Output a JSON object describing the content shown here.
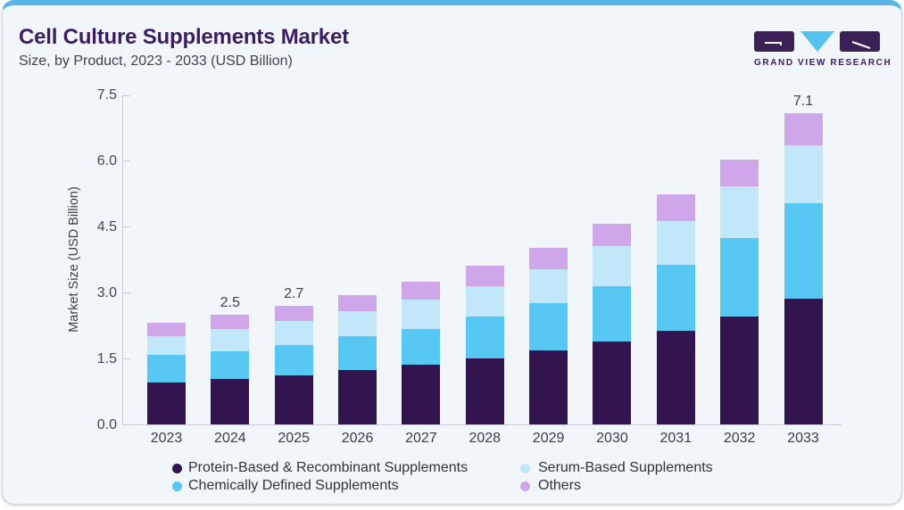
{
  "header": {
    "title": "Cell Culture Supplements Market",
    "subtitle": "Size, by Product, 2023 - 2033 (USD Billion)",
    "logo_text": "GRAND VIEW RESEARCH",
    "logo_icons": [
      "g-square-icon",
      "v-triangle-icon",
      "r-square-icon"
    ]
  },
  "colors": {
    "accent_bar_top": "#58b5e8",
    "card_background": "#f1f6fa",
    "title_purple": "#3a1d64",
    "logo_triangle_blue": "#56c0ee",
    "logo_square_purple": "#3b2158",
    "axis_gray": "#c6ccd2"
  },
  "chart_data": {
    "type": "bar",
    "stacked": true,
    "title": "Cell Culture Supplements Market",
    "subtitle": "Size, by Product, 2023 - 2033 (USD Billion)",
    "xlabel": "",
    "ylabel": "Market Size (USD Billion)",
    "ylim": [
      0,
      7.5
    ],
    "yticks": [
      0.0,
      1.5,
      3.0,
      4.5,
      6.0,
      7.5
    ],
    "grid": false,
    "legend_position": "bottom",
    "categories": [
      "2023",
      "2024",
      "2025",
      "2026",
      "2027",
      "2028",
      "2029",
      "2030",
      "2031",
      "2032",
      "2033"
    ],
    "series": [
      {
        "name": "Protein-Based & Recombinant Supplements",
        "color": "#32154e",
        "values": [
          0.97,
          1.04,
          1.13,
          1.25,
          1.36,
          1.52,
          1.69,
          1.9,
          2.15,
          2.47,
          2.87
        ]
      },
      {
        "name": "Chemically Defined Supplements",
        "color": "#57c7f3",
        "values": [
          0.62,
          0.64,
          0.69,
          0.76,
          0.83,
          0.95,
          1.08,
          1.26,
          1.49,
          1.79,
          2.17
        ]
      },
      {
        "name": "Serum-Based Supplements",
        "color": "#c3e7fa",
        "values": [
          0.43,
          0.51,
          0.55,
          0.57,
          0.67,
          0.68,
          0.77,
          0.9,
          1.0,
          1.16,
          1.32
        ]
      },
      {
        "name": "Others",
        "color": "#d0a6ea",
        "values": [
          0.31,
          0.31,
          0.33,
          0.37,
          0.39,
          0.47,
          0.49,
          0.51,
          0.6,
          0.62,
          0.74
        ]
      }
    ],
    "totals_labeled": {
      "2024": "2.5",
      "2025": "2.7",
      "2033": "7.1"
    }
  },
  "annotations": [
    {
      "year": "2024",
      "label": "2.5"
    },
    {
      "year": "2025",
      "label": "2.7"
    },
    {
      "year": "2033",
      "label": "7.1"
    }
  ],
  "legend": {
    "items": [
      {
        "label": "Protein-Based & Recombinant Supplements",
        "color": "#32154e"
      },
      {
        "label": "Serum-Based Supplements",
        "color": "#c3e7fa"
      },
      {
        "label": "Chemically Defined Supplements",
        "color": "#57c7f3"
      },
      {
        "label": "Others",
        "color": "#d0a6ea"
      }
    ]
  }
}
